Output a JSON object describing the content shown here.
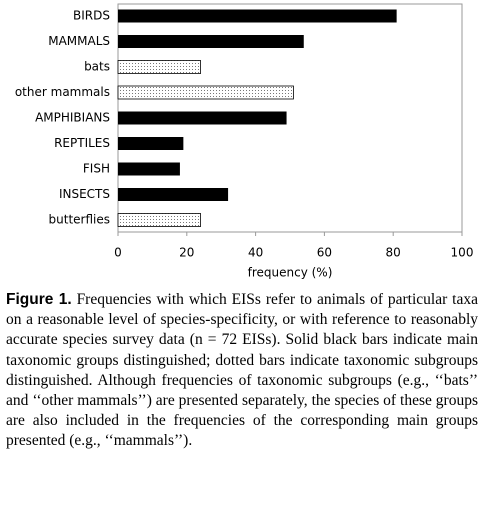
{
  "chart_data": {
    "type": "bar",
    "orientation": "horizontal",
    "categories": [
      "BIRDS",
      "MAMMALS",
      "bats",
      "other mammals",
      "AMPHIBIANS",
      "REPTILES",
      "FISH",
      "INSECTS",
      "butterflies"
    ],
    "values": [
      81,
      54,
      24,
      51,
      49,
      19,
      18,
      32,
      24
    ],
    "bar_styles": [
      "solid",
      "solid",
      "dotted",
      "dotted",
      "solid",
      "solid",
      "solid",
      "solid",
      "dotted"
    ],
    "color": "#000000",
    "xlabel": "frequency (%)",
    "xlim": [
      0,
      100
    ],
    "xticks": [
      0,
      20,
      40,
      60,
      80,
      100
    ],
    "grid": false
  },
  "caption": {
    "label": "Figure 1.",
    "text": "Frequencies with which EISs refer to animals of particular taxa on a reasonable level of species-specificity, or with reference to reasonably accurate species survey data (n = 72 EISs). Solid black bars indicate main taxonomic groups distinguished; dotted bars indicate taxonomic subgroups distinguished. Although frequencies of taxonomic subgroups (e.g., ‘‘bats’’ and ‘‘other mammals’’) are presented separately, the species of these groups are also included in the frequencies of the corresponding main groups presented (e.g., ‘‘mammals’’)."
  }
}
